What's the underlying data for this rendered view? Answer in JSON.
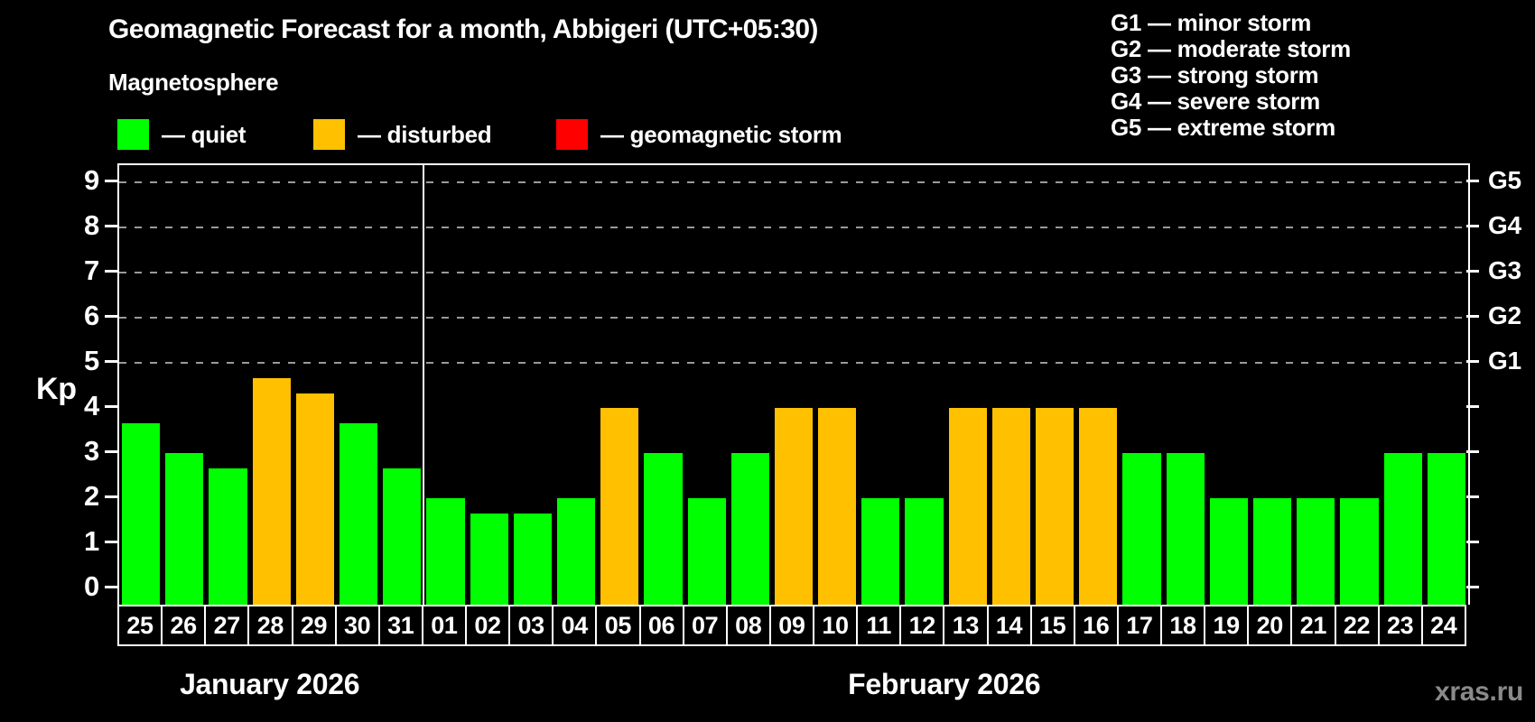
{
  "header": {
    "title": "Geomagnetic Forecast for a month, Abbigeri (UTC+05:30)",
    "subtitle": "Magnetosphere"
  },
  "legend": {
    "items": [
      {
        "key": "quiet",
        "label": "— quiet",
        "color": "#00ff00"
      },
      {
        "key": "disturbed",
        "label": "— disturbed",
        "color": "#ffc000"
      },
      {
        "key": "storm",
        "label": "— geomagnetic storm",
        "color": "#ff0000"
      }
    ]
  },
  "g_legend": [
    "G1 — minor storm",
    "G2 — moderate storm",
    "G3 — strong storm",
    "G4 — severe storm",
    "G5 — extreme storm"
  ],
  "watermark": "xras.ru",
  "chart_data": {
    "type": "bar",
    "title": "Geomagnetic Forecast for a month, Abbigeri (UTC+05:30)",
    "ylabel": "Kp",
    "ylim": [
      0,
      9
    ],
    "yticks": [
      "0",
      "1",
      "2",
      "3",
      "4",
      "5",
      "6",
      "7",
      "8",
      "9"
    ],
    "grid_at_kp": [
      5,
      6,
      7,
      8,
      9
    ],
    "right_axis": [
      {
        "label": "G1",
        "kp": 5
      },
      {
        "label": "G2",
        "kp": 6
      },
      {
        "label": "G3",
        "kp": 7
      },
      {
        "label": "G4",
        "kp": 8
      },
      {
        "label": "G5",
        "kp": 9
      }
    ],
    "months": [
      {
        "label": "January 2026",
        "days": 7
      },
      {
        "label": "February 2026",
        "days": 24
      }
    ],
    "categories": [
      "25",
      "26",
      "27",
      "28",
      "29",
      "30",
      "31",
      "01",
      "02",
      "03",
      "04",
      "05",
      "06",
      "07",
      "08",
      "09",
      "10",
      "11",
      "12",
      "13",
      "14",
      "15",
      "16",
      "17",
      "18",
      "19",
      "20",
      "21",
      "22",
      "23",
      "24"
    ],
    "values": [
      3.67,
      3.0,
      2.67,
      4.67,
      4.33,
      3.67,
      2.67,
      2.0,
      1.67,
      1.67,
      2.0,
      4.0,
      3.0,
      2.0,
      3.0,
      4.0,
      4.0,
      2.0,
      2.0,
      4.0,
      4.0,
      4.0,
      4.0,
      3.0,
      3.0,
      2.0,
      2.0,
      2.0,
      2.0,
      3.0,
      3.0
    ],
    "statuses": [
      "quiet",
      "quiet",
      "quiet",
      "disturbed",
      "disturbed",
      "quiet",
      "quiet",
      "quiet",
      "quiet",
      "quiet",
      "quiet",
      "disturbed",
      "quiet",
      "quiet",
      "quiet",
      "disturbed",
      "disturbed",
      "quiet",
      "quiet",
      "disturbed",
      "disturbed",
      "disturbed",
      "disturbed",
      "quiet",
      "quiet",
      "quiet",
      "quiet",
      "quiet",
      "quiet",
      "quiet",
      "quiet"
    ],
    "colors_by_status": {
      "quiet": "#00ff00",
      "disturbed": "#ffc000",
      "storm": "#ff0000"
    },
    "legend_position": "top",
    "grid": "dashed-horizontal"
  }
}
